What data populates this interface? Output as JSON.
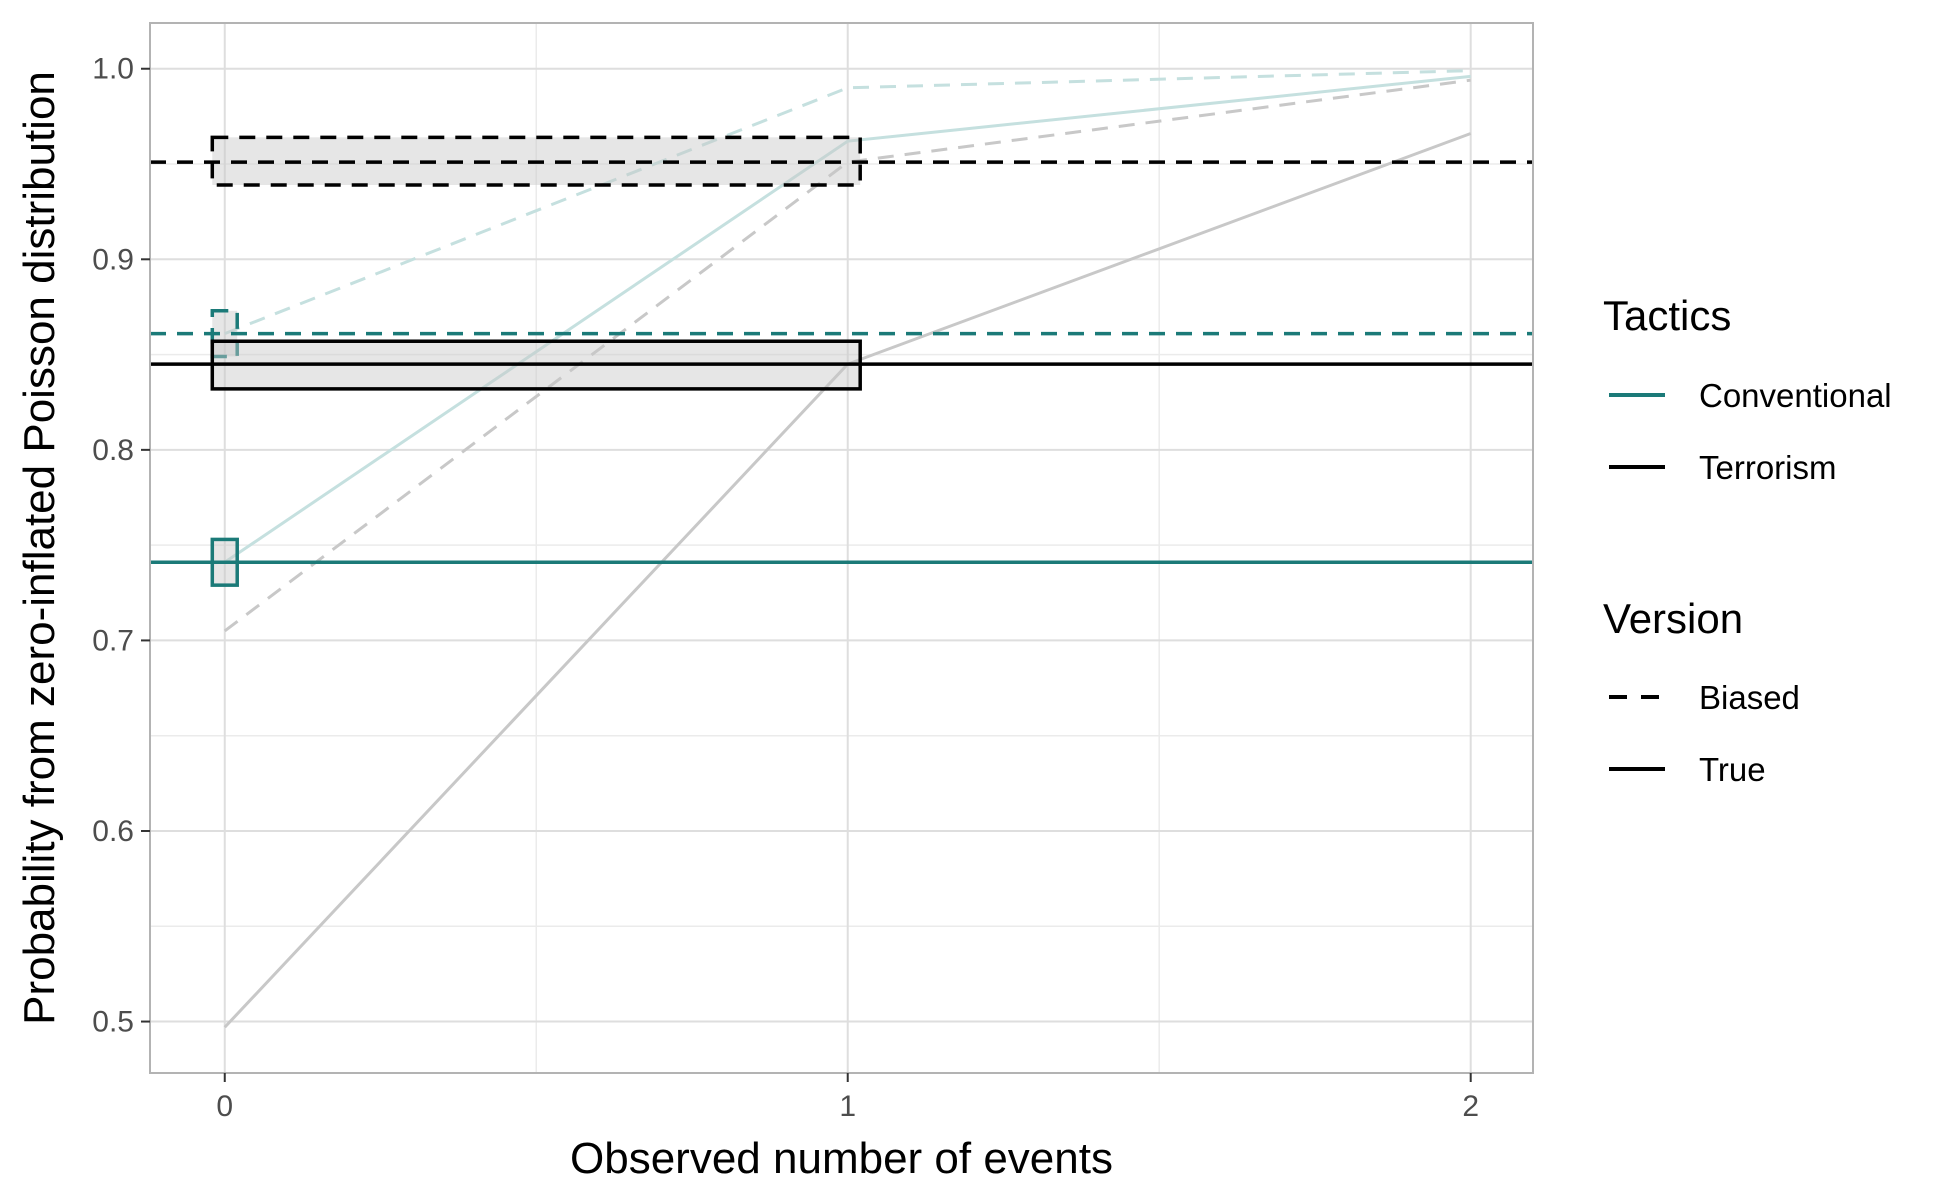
{
  "chart_data": {
    "type": "line",
    "xlabel": "Observed number of events",
    "ylabel": "Probability from zero-inflated Poisson distribution",
    "xlim": [
      -0.12,
      2.1
    ],
    "ylim": [
      0.473,
      1.024
    ],
    "x_ticks": [
      0,
      1,
      2
    ],
    "x_tick_labels": [
      "0",
      "1",
      "2"
    ],
    "y_ticks": [
      0.5,
      0.6,
      0.7,
      0.8,
      0.9,
      1.0
    ],
    "y_tick_labels": [
      "0.5",
      "0.6",
      "0.7",
      "0.8",
      "0.9",
      "1.0"
    ],
    "grid": true,
    "legend_placement": "right",
    "colors": {
      "Conventional": "#1b7a78",
      "Terrorism": "#000000"
    },
    "legends": [
      {
        "title": "Tactics",
        "entries": [
          {
            "label": "Conventional",
            "color": "#1b7a78",
            "linetype": "solid"
          },
          {
            "label": "Terrorism",
            "color": "#000000",
            "linetype": "solid"
          }
        ]
      },
      {
        "title": "Version",
        "entries": [
          {
            "label": "Biased",
            "color": "#000000",
            "linetype": "dashed"
          },
          {
            "label": "True",
            "color": "#000000",
            "linetype": "solid"
          }
        ]
      }
    ],
    "cdf_series": [
      {
        "tactics": "Conventional",
        "version": "True",
        "x": [
          0,
          1,
          2
        ],
        "y": [
          0.741,
          0.962,
          0.996
        ]
      },
      {
        "tactics": "Conventional",
        "version": "Biased",
        "x": [
          0,
          1,
          2
        ],
        "y": [
          0.861,
          0.99,
          0.999
        ]
      },
      {
        "tactics": "Terrorism",
        "version": "True",
        "x": [
          0,
          1,
          2
        ],
        "y": [
          0.497,
          0.845,
          0.966
        ]
      },
      {
        "tactics": "Terrorism",
        "version": "Biased",
        "x": [
          0,
          1,
          2
        ],
        "y": [
          0.705,
          0.951,
          0.994
        ]
      }
    ],
    "reference_lines": [
      {
        "tactics": "Conventional",
        "version": "True",
        "y": 0.741
      },
      {
        "tactics": "Conventional",
        "version": "Biased",
        "y": 0.861
      },
      {
        "tactics": "Terrorism",
        "version": "True",
        "y": 0.845
      },
      {
        "tactics": "Terrorism",
        "version": "Biased",
        "y": 0.951
      }
    ],
    "boxes": [
      {
        "tactics": "Conventional",
        "version": "True",
        "xmin": -0.02,
        "xmax": 0.02,
        "ymin": 0.729,
        "ymax": 0.753
      },
      {
        "tactics": "Conventional",
        "version": "Biased",
        "xmin": -0.02,
        "xmax": 0.02,
        "ymin": 0.849,
        "ymax": 0.873
      },
      {
        "tactics": "Terrorism",
        "version": "True",
        "xmin": -0.02,
        "xmax": 1.02,
        "ymin": 0.832,
        "ymax": 0.857
      },
      {
        "tactics": "Terrorism",
        "version": "Biased",
        "xmin": -0.02,
        "xmax": 1.02,
        "ymin": 0.939,
        "ymax": 0.964
      }
    ]
  }
}
